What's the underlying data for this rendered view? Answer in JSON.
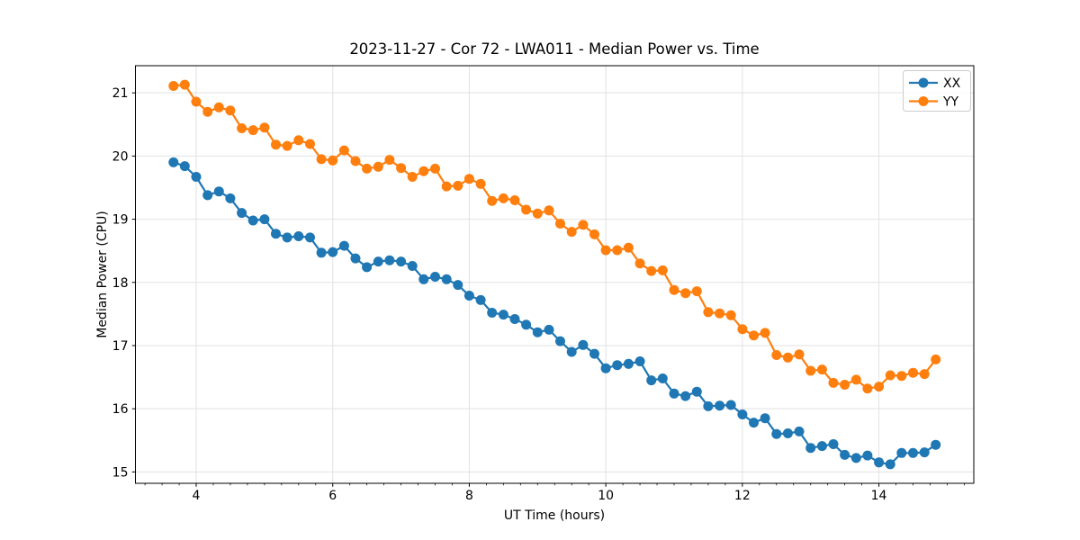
{
  "chart_data": {
    "type": "line",
    "title": "2023-11-27 - Cor 72 - LWA011 - Median Power vs. Time",
    "xlabel": "UT Time (hours)",
    "ylabel": "Median Power (CPU)",
    "xlim": [
      3.11,
      15.39
    ],
    "ylim": [
      14.82,
      21.43
    ],
    "xticks": [
      4,
      6,
      8,
      10,
      12,
      14
    ],
    "yticks": [
      15,
      16,
      17,
      18,
      19,
      20,
      21
    ],
    "x_minor_tick_step": 0.25,
    "grid": true,
    "grid_color": "#e2e2e2",
    "legend_position": "upper right",
    "x": [
      3.667,
      3.833,
      4.0,
      4.167,
      4.333,
      4.5,
      4.667,
      4.833,
      5.0,
      5.167,
      5.333,
      5.5,
      5.667,
      5.833,
      6.0,
      6.167,
      6.333,
      6.5,
      6.667,
      6.833,
      7.0,
      7.167,
      7.333,
      7.5,
      7.667,
      7.833,
      8.0,
      8.167,
      8.333,
      8.5,
      8.667,
      8.833,
      9.0,
      9.167,
      9.333,
      9.5,
      9.667,
      9.833,
      10.0,
      10.167,
      10.333,
      10.5,
      10.667,
      10.833,
      11.0,
      11.167,
      11.333,
      11.5,
      11.667,
      11.833,
      12.0,
      12.167,
      12.333,
      12.5,
      12.667,
      12.833,
      13.0,
      13.167,
      13.333,
      13.5,
      13.667,
      13.833,
      14.0,
      14.167,
      14.333,
      14.5,
      14.667,
      14.833
    ],
    "series": [
      {
        "name": "XX",
        "color": "#1f77b4",
        "values": [
          19.9,
          19.84,
          19.67,
          19.38,
          19.44,
          19.33,
          19.1,
          18.98,
          19.0,
          18.77,
          18.71,
          18.73,
          18.71,
          18.47,
          18.48,
          18.58,
          18.38,
          18.24,
          18.33,
          18.35,
          18.33,
          18.26,
          18.05,
          18.09,
          18.05,
          17.96,
          17.79,
          17.72,
          17.52,
          17.49,
          17.42,
          17.33,
          17.21,
          17.25,
          17.07,
          16.9,
          17.01,
          16.87,
          16.64,
          16.69,
          16.71,
          16.75,
          16.45,
          16.48,
          16.24,
          16.2,
          16.27,
          16.04,
          16.05,
          16.06,
          15.91,
          15.78,
          15.85,
          15.6,
          15.61,
          15.64,
          15.38,
          15.41,
          15.44,
          15.27,
          15.22,
          15.26,
          15.15,
          15.12,
          15.3,
          15.3,
          15.31,
          15.43
        ]
      },
      {
        "name": "YY",
        "color": "#ff7f0e",
        "values": [
          21.11,
          21.13,
          20.86,
          20.7,
          20.77,
          20.72,
          20.44,
          20.41,
          20.45,
          20.18,
          20.16,
          20.25,
          20.19,
          19.95,
          19.93,
          20.09,
          19.92,
          19.8,
          19.83,
          19.94,
          19.81,
          19.67,
          19.76,
          19.8,
          19.52,
          19.53,
          19.64,
          19.56,
          19.29,
          19.33,
          19.3,
          19.15,
          19.09,
          19.14,
          18.93,
          18.8,
          18.91,
          18.76,
          18.51,
          18.51,
          18.55,
          18.3,
          18.18,
          18.19,
          17.88,
          17.83,
          17.86,
          17.53,
          17.51,
          17.48,
          17.26,
          17.16,
          17.2,
          16.85,
          16.81,
          16.86,
          16.6,
          16.62,
          16.41,
          16.38,
          16.46,
          16.32,
          16.35,
          16.53,
          16.52,
          16.57,
          16.55,
          16.78
        ]
      }
    ]
  }
}
